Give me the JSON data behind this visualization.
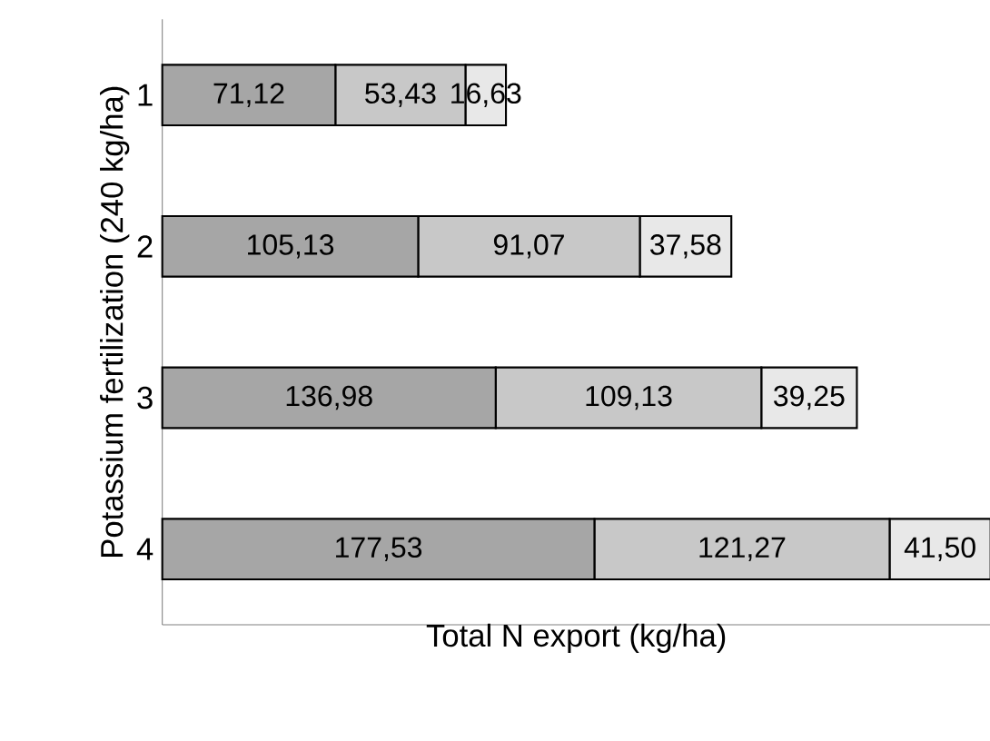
{
  "chart_data": {
    "type": "bar",
    "orientation": "horizontal",
    "stacked": true,
    "xlabel": "Total N export (kg/ha)",
    "ylabel": "Potassium fertilization (240 kg/ha)",
    "categories": [
      "1",
      "2",
      "3",
      "4"
    ],
    "series": [
      {
        "color": "#a6a6a6",
        "values": [
          71.12,
          105.13,
          136.98,
          177.53
        ],
        "value_labels": [
          "71,12",
          "105,13",
          "136,98",
          "177,53"
        ]
      },
      {
        "color": "#c8c8c8",
        "values": [
          53.43,
          91.07,
          109.13,
          121.27
        ],
        "value_labels": [
          "53,43",
          "91,07",
          "109,13",
          "121,27"
        ]
      },
      {
        "color": "#e8e8e8",
        "values": [
          16.63,
          37.58,
          39.25,
          41.5
        ],
        "value_labels": [
          "16,63",
          "37,58",
          "39,25",
          "41,50"
        ]
      }
    ],
    "tick_labels": "y",
    "grid": false
  }
}
